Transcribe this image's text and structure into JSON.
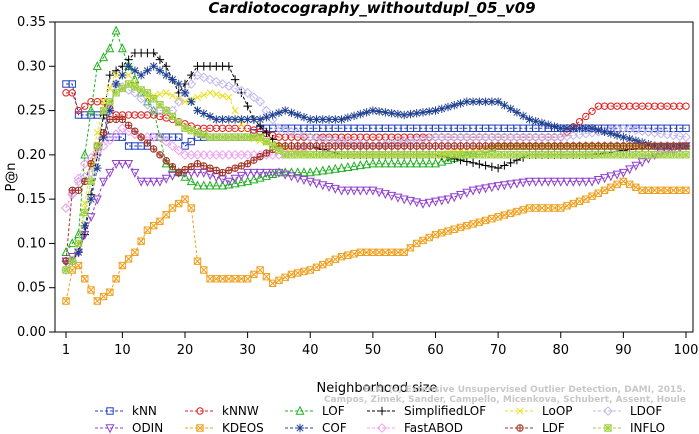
{
  "chart_data": {
    "type": "line",
    "title": "Cardiotocography_withoutdupl_05_v09",
    "xlabel": "Neighborhood size",
    "ylabel": "P@n",
    "xlim": [
      1,
      100
    ],
    "ylim": [
      0,
      0.35
    ],
    "x_ticks": [
      1,
      10,
      20,
      30,
      40,
      50,
      60,
      70,
      80,
      90,
      100
    ],
    "y_ticks": [
      0.0,
      0.05,
      0.1,
      0.15,
      0.2,
      0.25,
      0.3,
      0.35
    ],
    "x_tick_labels": [
      "1",
      "10",
      "20",
      "30",
      "40",
      "50",
      "60",
      "70",
      "80",
      "90",
      "100"
    ],
    "y_tick_labels": [
      "0.00",
      "0.05",
      "0.10",
      "0.15",
      "0.20",
      "0.25",
      "0.30",
      "0.35"
    ],
    "grid": false,
    "legend_position": "bottom",
    "watermark_line1": "ELKI (c) Extensive Unsupervised Outlier Detection, DAMI, 2015.",
    "watermark_line2": "Campos, Zimek, Sander, Campello, Micenkova, Schubert, Assent, Houle",
    "series": [
      {
        "name": "kNN",
        "color": "#1f3fbf",
        "marker": "square",
        "points": [
          [
            1,
            0.28
          ],
          [
            2,
            0.28
          ],
          [
            3,
            0.245
          ],
          [
            5,
            0.245
          ],
          [
            7,
            0.245
          ],
          [
            8,
            0.22
          ],
          [
            9,
            0.22
          ],
          [
            10,
            0.22
          ],
          [
            11,
            0.21
          ],
          [
            14,
            0.21
          ],
          [
            15,
            0.22
          ],
          [
            19,
            0.22
          ],
          [
            20,
            0.21
          ],
          [
            22,
            0.22
          ],
          [
            30,
            0.22
          ],
          [
            32,
            0.23
          ],
          [
            40,
            0.23
          ],
          [
            50,
            0.23
          ],
          [
            60,
            0.23
          ],
          [
            70,
            0.23
          ],
          [
            80,
            0.23
          ],
          [
            90,
            0.23
          ],
          [
            100,
            0.23
          ]
        ]
      },
      {
        "name": "kNNW",
        "color": "#e02020",
        "marker": "circle",
        "points": [
          [
            1,
            0.27
          ],
          [
            2,
            0.27
          ],
          [
            3,
            0.25
          ],
          [
            5,
            0.26
          ],
          [
            7,
            0.26
          ],
          [
            9,
            0.245
          ],
          [
            11,
            0.245
          ],
          [
            15,
            0.245
          ],
          [
            18,
            0.24
          ],
          [
            22,
            0.23
          ],
          [
            30,
            0.23
          ],
          [
            35,
            0.22
          ],
          [
            40,
            0.22
          ],
          [
            60,
            0.22
          ],
          [
            80,
            0.22
          ],
          [
            86,
            0.255
          ],
          [
            90,
            0.255
          ],
          [
            100,
            0.255
          ]
        ]
      },
      {
        "name": "LOF",
        "color": "#20b020",
        "marker": "triangle",
        "points": [
          [
            1,
            0.09
          ],
          [
            2,
            0.1
          ],
          [
            3,
            0.11
          ],
          [
            4,
            0.2
          ],
          [
            6,
            0.3
          ],
          [
            8,
            0.32
          ],
          [
            9,
            0.34
          ],
          [
            11,
            0.3
          ],
          [
            13,
            0.27
          ],
          [
            15,
            0.25
          ],
          [
            17,
            0.19
          ],
          [
            19,
            0.18
          ],
          [
            22,
            0.165
          ],
          [
            26,
            0.165
          ],
          [
            30,
            0.17
          ],
          [
            35,
            0.18
          ],
          [
            40,
            0.18
          ],
          [
            50,
            0.19
          ],
          [
            60,
            0.19
          ],
          [
            65,
            0.2
          ],
          [
            70,
            0.21
          ],
          [
            80,
            0.21
          ],
          [
            90,
            0.21
          ],
          [
            100,
            0.21
          ]
        ]
      },
      {
        "name": "SimplifiedLOF",
        "color": "#000000",
        "marker": "plus",
        "points": [
          [
            1,
            0.08
          ],
          [
            2,
            0.08
          ],
          [
            3,
            0.09
          ],
          [
            4,
            0.11
          ],
          [
            6,
            0.2
          ],
          [
            8,
            0.29
          ],
          [
            10,
            0.3
          ],
          [
            12,
            0.315
          ],
          [
            15,
            0.315
          ],
          [
            17,
            0.3
          ],
          [
            19,
            0.27
          ],
          [
            22,
            0.3
          ],
          [
            25,
            0.3
          ],
          [
            27,
            0.3
          ],
          [
            29,
            0.27
          ],
          [
            31,
            0.24
          ],
          [
            35,
            0.21
          ],
          [
            40,
            0.21
          ],
          [
            45,
            0.2
          ],
          [
            55,
            0.2
          ],
          [
            60,
            0.2
          ],
          [
            70,
            0.185
          ],
          [
            75,
            0.2
          ],
          [
            85,
            0.2
          ],
          [
            95,
            0.21
          ],
          [
            100,
            0.21
          ]
        ]
      },
      {
        "name": "LoOP",
        "color": "#e8e020",
        "marker": "x",
        "points": [
          [
            1,
            0.07
          ],
          [
            2,
            0.08
          ],
          [
            3,
            0.1
          ],
          [
            5,
            0.19
          ],
          [
            7,
            0.26
          ],
          [
            9,
            0.29
          ],
          [
            11,
            0.29
          ],
          [
            14,
            0.265
          ],
          [
            17,
            0.27
          ],
          [
            20,
            0.26
          ],
          [
            24,
            0.27
          ],
          [
            27,
            0.265
          ],
          [
            30,
            0.22
          ],
          [
            35,
            0.21
          ],
          [
            40,
            0.2
          ],
          [
            50,
            0.2
          ],
          [
            60,
            0.2
          ],
          [
            70,
            0.21
          ],
          [
            80,
            0.21
          ],
          [
            90,
            0.21
          ],
          [
            100,
            0.21
          ]
        ]
      },
      {
        "name": "LDOF",
        "color": "#c0b8f0",
        "marker": "diamond",
        "points": [
          [
            1,
            0.14
          ],
          [
            3,
            0.17
          ],
          [
            5,
            0.18
          ],
          [
            7,
            0.22
          ],
          [
            9,
            0.28
          ],
          [
            12,
            0.27
          ],
          [
            15,
            0.25
          ],
          [
            18,
            0.25
          ],
          [
            22,
            0.29
          ],
          [
            26,
            0.28
          ],
          [
            30,
            0.27
          ],
          [
            32,
            0.26
          ],
          [
            35,
            0.23
          ],
          [
            40,
            0.22
          ],
          [
            50,
            0.21
          ],
          [
            60,
            0.22
          ],
          [
            70,
            0.22
          ],
          [
            80,
            0.22
          ],
          [
            90,
            0.23
          ],
          [
            100,
            0.22
          ]
        ]
      },
      {
        "name": "ODIN",
        "color": "#9040d0",
        "marker": "invtriangle",
        "points": [
          [
            1,
            0.08
          ],
          [
            3,
            0.09
          ],
          [
            5,
            0.13
          ],
          [
            7,
            0.17
          ],
          [
            9,
            0.19
          ],
          [
            11,
            0.19
          ],
          [
            13,
            0.17
          ],
          [
            16,
            0.17
          ],
          [
            19,
            0.18
          ],
          [
            23,
            0.18
          ],
          [
            27,
            0.17
          ],
          [
            30,
            0.18
          ],
          [
            35,
            0.18
          ],
          [
            40,
            0.17
          ],
          [
            45,
            0.16
          ],
          [
            50,
            0.16
          ],
          [
            55,
            0.15
          ],
          [
            58,
            0.145
          ],
          [
            62,
            0.15
          ],
          [
            66,
            0.16
          ],
          [
            70,
            0.165
          ],
          [
            75,
            0.17
          ],
          [
            80,
            0.17
          ],
          [
            85,
            0.17
          ],
          [
            90,
            0.18
          ],
          [
            95,
            0.2
          ],
          [
            100,
            0.21
          ]
        ]
      },
      {
        "name": "KDEOS",
        "color": "#f0a020",
        "marker": "squarex",
        "points": [
          [
            1,
            0.035
          ],
          [
            2,
            0.07
          ],
          [
            3,
            0.075
          ],
          [
            4,
            0.06
          ],
          [
            6,
            0.035
          ],
          [
            8,
            0.045
          ],
          [
            10,
            0.075
          ],
          [
            12,
            0.09
          ],
          [
            14,
            0.115
          ],
          [
            16,
            0.125
          ],
          [
            18,
            0.14
          ],
          [
            20,
            0.15
          ],
          [
            21,
            0.14
          ],
          [
            22,
            0.08
          ],
          [
            24,
            0.06
          ],
          [
            30,
            0.06
          ],
          [
            32,
            0.07
          ],
          [
            34,
            0.055
          ],
          [
            37,
            0.065
          ],
          [
            40,
            0.07
          ],
          [
            45,
            0.085
          ],
          [
            48,
            0.09
          ],
          [
            55,
            0.09
          ],
          [
            57,
            0.1
          ],
          [
            60,
            0.11
          ],
          [
            65,
            0.12
          ],
          [
            70,
            0.13
          ],
          [
            75,
            0.14
          ],
          [
            80,
            0.14
          ],
          [
            84,
            0.15
          ],
          [
            90,
            0.17
          ],
          [
            93,
            0.16
          ],
          [
            100,
            0.16
          ]
        ]
      },
      {
        "name": "COF",
        "color": "#1f3f90",
        "marker": "star",
        "points": [
          [
            1,
            0.07
          ],
          [
            3,
            0.09
          ],
          [
            5,
            0.15
          ],
          [
            7,
            0.22
          ],
          [
            9,
            0.28
          ],
          [
            11,
            0.3
          ],
          [
            13,
            0.29
          ],
          [
            15,
            0.3
          ],
          [
            17,
            0.29
          ],
          [
            19,
            0.28
          ],
          [
            22,
            0.25
          ],
          [
            25,
            0.24
          ],
          [
            28,
            0.24
          ],
          [
            32,
            0.24
          ],
          [
            36,
            0.25
          ],
          [
            40,
            0.24
          ],
          [
            45,
            0.24
          ],
          [
            50,
            0.25
          ],
          [
            55,
            0.245
          ],
          [
            60,
            0.25
          ],
          [
            65,
            0.26
          ],
          [
            70,
            0.26
          ],
          [
            75,
            0.24
          ],
          [
            80,
            0.23
          ],
          [
            85,
            0.23
          ],
          [
            90,
            0.22
          ],
          [
            95,
            0.21
          ],
          [
            100,
            0.21
          ]
        ]
      },
      {
        "name": "FastABOD",
        "color": "#f0a0f0",
        "marker": "diamond",
        "points": [
          [
            1,
            0.14
          ],
          [
            4,
            0.19
          ],
          [
            7,
            0.21
          ],
          [
            10,
            0.23
          ],
          [
            13,
            0.22
          ],
          [
            16,
            0.22
          ],
          [
            20,
            0.2
          ],
          [
            25,
            0.2
          ],
          [
            30,
            0.2
          ],
          [
            35,
            0.2
          ],
          [
            40,
            0.21
          ],
          [
            50,
            0.21
          ],
          [
            60,
            0.21
          ],
          [
            70,
            0.21
          ],
          [
            80,
            0.21
          ],
          [
            90,
            0.21
          ],
          [
            100,
            0.21
          ]
        ]
      },
      {
        "name": "LDF",
        "color": "#a03020",
        "marker": "circleplus",
        "points": [
          [
            1,
            0.08
          ],
          [
            2,
            0.16
          ],
          [
            3,
            0.16
          ],
          [
            4,
            0.17
          ],
          [
            6,
            0.21
          ],
          [
            8,
            0.24
          ],
          [
            10,
            0.24
          ],
          [
            13,
            0.22
          ],
          [
            16,
            0.2
          ],
          [
            19,
            0.18
          ],
          [
            22,
            0.19
          ],
          [
            26,
            0.18
          ],
          [
            30,
            0.19
          ],
          [
            35,
            0.21
          ],
          [
            40,
            0.21
          ],
          [
            50,
            0.21
          ],
          [
            60,
            0.21
          ],
          [
            70,
            0.21
          ],
          [
            80,
            0.21
          ],
          [
            90,
            0.21
          ],
          [
            100,
            0.21
          ]
        ]
      },
      {
        "name": "INFLO",
        "color": "#a0d040",
        "marker": "squarestar",
        "points": [
          [
            1,
            0.07
          ],
          [
            2,
            0.08
          ],
          [
            3,
            0.1
          ],
          [
            5,
            0.17
          ],
          [
            7,
            0.25
          ],
          [
            9,
            0.27
          ],
          [
            11,
            0.28
          ],
          [
            14,
            0.27
          ],
          [
            17,
            0.25
          ],
          [
            20,
            0.23
          ],
          [
            24,
            0.22
          ],
          [
            28,
            0.22
          ],
          [
            32,
            0.22
          ],
          [
            36,
            0.2
          ],
          [
            40,
            0.2
          ],
          [
            50,
            0.2
          ],
          [
            60,
            0.2
          ],
          [
            70,
            0.2
          ],
          [
            80,
            0.2
          ],
          [
            90,
            0.2
          ],
          [
            100,
            0.2
          ]
        ]
      }
    ]
  }
}
